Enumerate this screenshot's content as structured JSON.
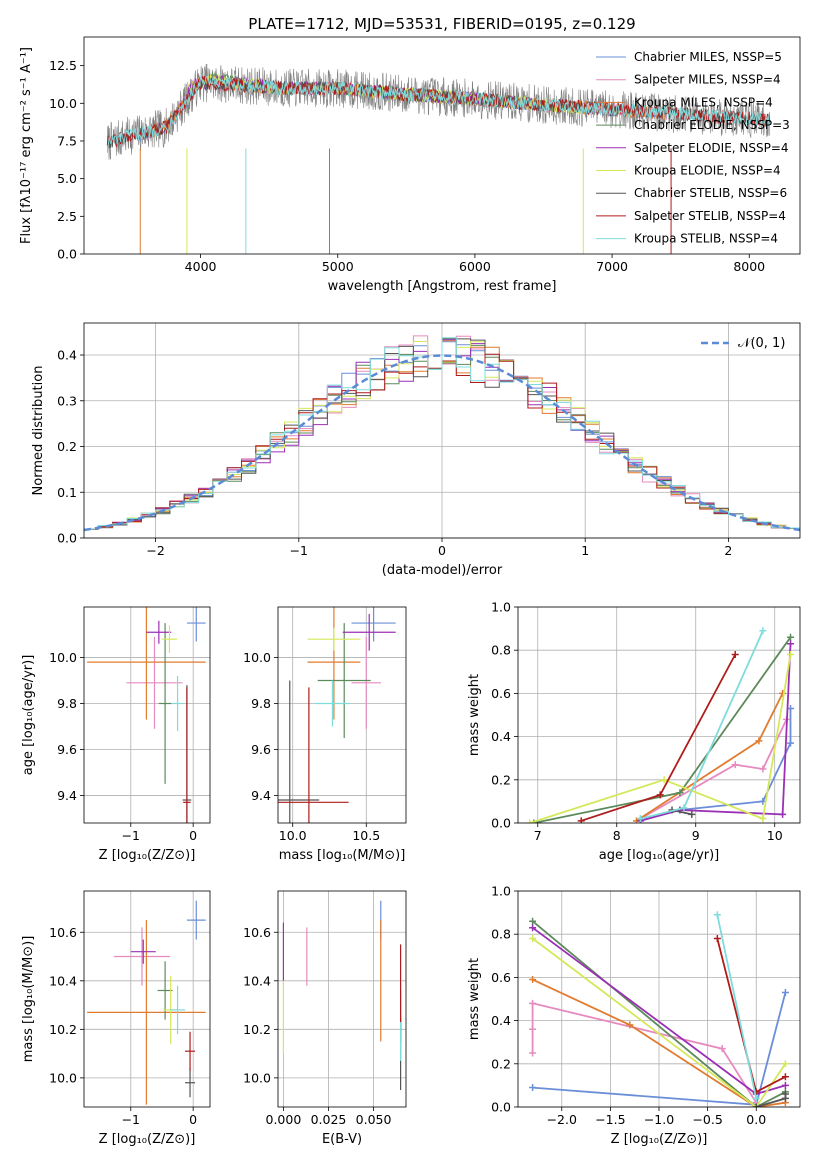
{
  "chart_data": [
    {
      "id": "spectrum",
      "type": "line",
      "title": "PLATE=1712, MJD=53531, FIBERID=0195, z=0.129",
      "xlabel": "wavelength [Angstrom, rest frame]",
      "ylabel": "Flux [fλ10⁻¹⁷ erg cm⁻² s⁻¹ A⁻¹]",
      "xlim": [
        3150,
        8370
      ],
      "ylim": [
        0,
        14.4
      ],
      "xticks": [
        4000,
        5000,
        6000,
        7000,
        8000
      ],
      "yticks": [
        0.0,
        2.5,
        5.0,
        7.5,
        10.0,
        12.5
      ],
      "grid": false,
      "legend_position": "right",
      "series": [
        {
          "name": "Chabrier MILES, N_SSP=5",
          "color": "#6a8fd8",
          "wave": [
            3540,
            3750,
            4000,
            4300,
            4600,
            5000,
            5500,
            6000,
            6500,
            7000,
            7400
          ],
          "flux": [
            7.8,
            8.5,
            11.4,
            11.2,
            11.0,
            11.0,
            10.6,
            10.3,
            9.9,
            9.6,
            9.3
          ]
        },
        {
          "name": "Salpeter MILES, N_SSP=4",
          "color": "#e68bbf",
          "wave": [
            3540,
            3750,
            4000,
            4300,
            4600,
            5000,
            5500,
            6000,
            6500,
            7000,
            7400
          ],
          "flux": [
            7.8,
            8.5,
            11.4,
            11.2,
            11.0,
            11.0,
            10.6,
            10.3,
            9.9,
            9.6,
            9.3
          ]
        },
        {
          "name": "Kroupa MILES, N_SSP=4",
          "color": "#e07b2f",
          "wave": [
            3540,
            3750,
            4000,
            4300,
            4600,
            5000,
            5500,
            6000,
            6500,
            7000,
            7400
          ],
          "flux": [
            7.8,
            8.5,
            11.4,
            11.2,
            11.0,
            11.0,
            10.6,
            10.3,
            9.9,
            9.6,
            9.3
          ]
        },
        {
          "name": "Chabrier ELODIE, N_SSP=3",
          "color": "#5d8a5b",
          "wave": [
            3900,
            4100,
            4300,
            4600,
            5000,
            5500,
            6000,
            6500
          ],
          "flux": [
            11.0,
            11.6,
            11.3,
            11.0,
            11.0,
            10.6,
            10.3,
            9.9
          ]
        },
        {
          "name": "Salpeter ELODIE, N_SSP=4",
          "color": "#9b30b5",
          "wave": [
            3900,
            4100,
            4300,
            4600,
            5000,
            5500,
            6000,
            6500
          ],
          "flux": [
            11.0,
            11.6,
            11.3,
            11.0,
            11.0,
            10.6,
            10.3,
            9.9
          ]
        },
        {
          "name": "Kroupa ELODIE, N_SSP=4",
          "color": "#d5e85a",
          "wave": [
            3900,
            4100,
            4300,
            4600,
            5000,
            5500,
            6000,
            6500,
            6800
          ],
          "flux": [
            11.0,
            11.6,
            11.3,
            11.0,
            11.0,
            10.6,
            10.3,
            9.9,
            9.6
          ]
        },
        {
          "name": "Chabrier STELIB, N_SSP=6",
          "color": "#555555",
          "wave": [
            3320,
            3500,
            3750,
            4000,
            4300,
            4600,
            5000,
            5500,
            6000,
            6500,
            7000,
            7500,
            8000,
            8150
          ],
          "flux": [
            7.4,
            7.9,
            8.4,
            11.4,
            11.2,
            11.0,
            11.0,
            10.6,
            10.3,
            9.9,
            9.6,
            9.3,
            9.0,
            8.9
          ]
        },
        {
          "name": "Salpeter STELIB, N_SSP=4",
          "color": "#b01c1c",
          "wave": [
            3320,
            3500,
            3750,
            4000,
            4300,
            4600,
            5000,
            5500,
            6000,
            6500,
            7000,
            7500,
            8000,
            8150
          ],
          "flux": [
            7.4,
            7.9,
            8.4,
            11.4,
            11.2,
            11.0,
            11.0,
            10.6,
            10.3,
            9.9,
            9.6,
            9.3,
            9.0,
            8.9
          ]
        },
        {
          "name": "Kroupa STELIB, N_SSP=4",
          "color": "#7fdcdc",
          "wave": [
            3320,
            3500,
            3750,
            4000,
            4300,
            4600,
            5000,
            5500,
            6000,
            6500,
            7000,
            7500,
            8000,
            8150
          ],
          "flux": [
            7.4,
            7.9,
            8.4,
            11.4,
            11.2,
            11.0,
            11.0,
            10.6,
            10.3,
            9.9,
            9.6,
            9.3,
            9.0,
            8.9
          ]
        }
      ],
      "observed": {
        "color": "#808080",
        "wave": [
          3320,
          3500,
          3750,
          4000,
          4300,
          4600,
          5000,
          5500,
          6000,
          6500,
          7000,
          7500,
          8000,
          8150
        ],
        "flux": [
          7.4,
          7.9,
          8.4,
          11.4,
          11.2,
          11.0,
          11.0,
          10.6,
          10.3,
          9.9,
          9.6,
          9.3,
          9.0,
          8.9
        ]
      }
    },
    {
      "id": "residuals",
      "type": "line",
      "xlabel": "(data-model)/error",
      "ylabel": "Normed distribution",
      "xlim": [
        -2.5,
        2.5
      ],
      "ylim": [
        0,
        0.47
      ],
      "xticks": [
        -2,
        -1,
        0,
        1,
        2
      ],
      "xtick_labels": [
        "−2",
        "−1",
        "0",
        "1",
        "2"
      ],
      "yticks": [
        0.0,
        0.1,
        0.2,
        0.3,
        0.4
      ],
      "grid": true,
      "legend_position": "top-right",
      "legend": "𝒩(0, 1)",
      "gauss_color": "#5b8bd6",
      "bin_width": 0.1
    },
    {
      "id": "age-vs-z",
      "type": "scatter",
      "xlabel": "Z [log₁₀(Z/Z⊙)]",
      "ylabel": "age  [log₁₀(age/yr)]",
      "xlim": [
        -1.75,
        0.27
      ],
      "ylim": [
        9.28,
        10.22
      ],
      "xticks": [
        -1,
        0
      ],
      "xtick_labels": [
        "−1",
        "0"
      ],
      "yticks": [
        9.4,
        9.6,
        9.8,
        10.0
      ],
      "grid": true,
      "points": [
        {
          "color": "#6a8fd8",
          "x": 0.05,
          "y": 10.15,
          "xerr": 0.15,
          "yerr": 0.08
        },
        {
          "color": "#e68bbf",
          "x": -0.62,
          "y": 9.89,
          "xerr": 0.45,
          "yerr": 0.2
        },
        {
          "color": "#e07b2f",
          "x": -0.75,
          "y": 9.98,
          "xerr": 0.95,
          "yerr": 0.25
        },
        {
          "color": "#5d8a5b",
          "x": -0.45,
          "y": 9.8,
          "xerr": 0.1,
          "yerr": 0.35
        },
        {
          "color": "#9b30b5",
          "x": -0.55,
          "y": 10.11,
          "xerr": 0.2,
          "yerr": 0.05
        },
        {
          "color": "#d5e85a",
          "x": -0.38,
          "y": 10.08,
          "xerr": 0.12,
          "yerr": 0.06
        },
        {
          "color": "#555555",
          "x": -0.1,
          "y": 9.38,
          "xerr": 0.07,
          "yerr": 0.5
        },
        {
          "color": "#b01c1c",
          "x": -0.1,
          "y": 9.37,
          "xerr": 0.06,
          "yerr": 0.5
        },
        {
          "color": "#7fdcdc",
          "x": -0.25,
          "y": 9.8,
          "xerr": 0.1,
          "yerr": 0.12
        }
      ]
    },
    {
      "id": "age-vs-mass",
      "type": "scatter",
      "xlabel": "mass [log₁₀(M/M⊙)]",
      "xlim": [
        9.9,
        10.77
      ],
      "ylim": [
        9.28,
        10.22
      ],
      "xticks": [
        10.0,
        10.5
      ],
      "yticks": [
        9.4,
        9.6,
        9.8,
        10.0
      ],
      "grid": true,
      "points": [
        {
          "color": "#6a8fd8",
          "x": 10.55,
          "y": 10.15,
          "xerr": 0.15,
          "yerr": 0.08
        },
        {
          "color": "#e68bbf",
          "x": 10.5,
          "y": 9.89,
          "xerr": 0.1,
          "yerr": 0.2
        },
        {
          "color": "#e07b2f",
          "x": 10.28,
          "y": 9.98,
          "xerr": 0.18,
          "yerr": 0.25
        },
        {
          "color": "#5d8a5b",
          "x": 10.35,
          "y": 9.9,
          "xerr": 0.18,
          "yerr": 0.25
        },
        {
          "color": "#9b30b5",
          "x": 10.52,
          "y": 10.11,
          "xerr": 0.18,
          "yerr": 0.08
        },
        {
          "color": "#d5e85a",
          "x": 10.28,
          "y": 10.08,
          "xerr": 0.18,
          "yerr": 0.05
        },
        {
          "color": "#555555",
          "x": 9.98,
          "y": 9.38,
          "xerr": 0.2,
          "yerr": 0.52
        },
        {
          "color": "#b01c1c",
          "x": 10.11,
          "y": 9.37,
          "xerr": 0.27,
          "yerr": 0.5
        },
        {
          "color": "#7fdcdc",
          "x": 10.27,
          "y": 9.8,
          "xerr": 0.12,
          "yerr": 0.1
        }
      ]
    },
    {
      "id": "mass-weight-vs-age",
      "type": "line",
      "xlabel": "age  [log₁₀(age/yr)]",
      "ylabel": "mass weight",
      "xlim": [
        6.75,
        10.32
      ],
      "ylim": [
        0,
        1.0
      ],
      "xticks": [
        7,
        8,
        9,
        10
      ],
      "yticks": [
        0.0,
        0.2,
        0.4,
        0.6,
        0.8,
        1.0
      ],
      "grid": true,
      "series": [
        {
          "name": "Chabrier MILES",
          "color": "#6a8fd8",
          "x": [
            8.3,
            8.8,
            9.85,
            10.2,
            10.2
          ],
          "y": [
            0.01,
            0.06,
            0.1,
            0.37,
            0.53
          ]
        },
        {
          "name": "Salpeter MILES",
          "color": "#e68bbf",
          "x": [
            8.3,
            9.5,
            9.85,
            10.15
          ],
          "y": [
            0.02,
            0.27,
            0.25,
            0.48
          ]
        },
        {
          "name": "Kroupa MILES",
          "color": "#e07b2f",
          "x": [
            8.25,
            9.8,
            10.1
          ],
          "y": [
            0.01,
            0.38,
            0.6
          ]
        },
        {
          "name": "Chabrier ELODIE",
          "color": "#5d8a5b",
          "x": [
            6.95,
            8.8,
            10.2
          ],
          "y": [
            0.0,
            0.14,
            0.86
          ]
        },
        {
          "name": "Salpeter ELODIE",
          "color": "#9b30b5",
          "x": [
            8.3,
            8.8,
            10.1,
            10.2
          ],
          "y": [
            0.01,
            0.06,
            0.04,
            0.83
          ]
        },
        {
          "name": "Kroupa ELODIE",
          "color": "#d5e85a",
          "x": [
            6.9,
            8.6,
            9.85,
            10.2
          ],
          "y": [
            0.0,
            0.2,
            0.02,
            0.78
          ]
        },
        {
          "name": "Chabrier STELIB",
          "color": "#555555",
          "x": [
            8.7,
            8.95
          ],
          "y": [
            0.06,
            0.04
          ]
        },
        {
          "name": "Salpeter STELIB",
          "color": "#b01c1c",
          "x": [
            7.55,
            8.55,
            9.5
          ],
          "y": [
            0.01,
            0.13,
            0.78
          ]
        },
        {
          "name": "Kroupa STELIB",
          "color": "#7fdcdc",
          "x": [
            8.3,
            8.85,
            9.85
          ],
          "y": [
            0.02,
            0.07,
            0.89
          ]
        }
      ]
    },
    {
      "id": "mass-vs-z",
      "type": "scatter",
      "xlabel": "Z [log₁₀(Z/Z⊙)]",
      "ylabel": "mass [log₁₀(M/M⊙)]",
      "xlim": [
        -1.75,
        0.27
      ],
      "ylim": [
        9.88,
        10.77
      ],
      "xticks": [
        -1,
        0
      ],
      "xtick_labels": [
        "−1",
        "0"
      ],
      "yticks": [
        10.0,
        10.2,
        10.4,
        10.6
      ],
      "grid": true,
      "points": [
        {
          "color": "#6a8fd8",
          "x": 0.05,
          "y": 10.65,
          "xerr": 0.15,
          "yerr": 0.08
        },
        {
          "color": "#e68bbf",
          "x": -0.82,
          "y": 10.5,
          "xerr": 0.45,
          "yerr": 0.12
        },
        {
          "color": "#e07b2f",
          "x": -0.75,
          "y": 10.27,
          "xerr": 0.95,
          "yerr": 0.38
        },
        {
          "color": "#5d8a5b",
          "x": -0.45,
          "y": 10.36,
          "xerr": 0.12,
          "yerr": 0.12
        },
        {
          "color": "#9b30b5",
          "x": -0.8,
          "y": 10.52,
          "xerr": 0.2,
          "yerr": 0.05
        },
        {
          "color": "#d5e85a",
          "x": -0.36,
          "y": 10.28,
          "xerr": 0.12,
          "yerr": 0.14
        },
        {
          "color": "#555555",
          "x": -0.05,
          "y": 9.98,
          "xerr": 0.08,
          "yerr": 0.06
        },
        {
          "color": "#b01c1c",
          "x": -0.05,
          "y": 10.11,
          "xerr": 0.08,
          "yerr": 0.08
        },
        {
          "color": "#7fdcdc",
          "x": -0.25,
          "y": 10.28,
          "xerr": 0.12,
          "yerr": 0.1
        }
      ]
    },
    {
      "id": "mass-vs-ebv",
      "type": "scatter",
      "xlabel": "E(B-V)",
      "xlim": [
        -0.003,
        0.068
      ],
      "ylim": [
        9.88,
        10.77
      ],
      "xticks": [
        0.0,
        0.025,
        0.05
      ],
      "xtick_labels": [
        "0.000",
        "0.025",
        "0.050"
      ],
      "yticks": [
        10.0,
        10.2,
        10.4,
        10.6
      ],
      "grid": true,
      "points": [
        {
          "color": "#6a8fd8",
          "x": 0.054,
          "y": 10.65,
          "xerr": 0.0,
          "yerr": 0.08
        },
        {
          "color": "#e68bbf",
          "x": 0.013,
          "y": 10.5,
          "xerr": 0.0,
          "yerr": 0.12
        },
        {
          "color": "#e07b2f",
          "x": 0.054,
          "y": 10.4,
          "xerr": 0.0,
          "yerr": 0.25
        },
        {
          "color": "#5d8a5b",
          "x": 0.065,
          "y": 10.28,
          "xerr": 0.0,
          "yerr": 0.08
        },
        {
          "color": "#9b30b5",
          "x": 0.0,
          "y": 10.52,
          "xerr": 0.0,
          "yerr": 0.12
        },
        {
          "color": "#d5e85a",
          "x": 0.0,
          "y": 10.25,
          "xerr": 0.0,
          "yerr": 0.15
        },
        {
          "color": "#555555",
          "x": 0.065,
          "y": 10.1,
          "xerr": 0.0,
          "yerr": 0.15
        },
        {
          "color": "#b01c1c",
          "x": 0.065,
          "y": 10.35,
          "xerr": 0.0,
          "yerr": 0.2
        },
        {
          "color": "#7fdcdc",
          "x": 0.065,
          "y": 10.15,
          "xerr": 0.0,
          "yerr": 0.08
        }
      ]
    },
    {
      "id": "mass-weight-vs-z",
      "type": "line",
      "xlabel": "Z [log₁₀(Z/Z⊙)]",
      "ylabel": "mass weight",
      "xlim": [
        -2.45,
        0.45
      ],
      "ylim": [
        0,
        1.0
      ],
      "xticks": [
        -2.0,
        -1.5,
        -1.0,
        -0.5,
        0.0
      ],
      "xtick_labels": [
        "−2.0",
        "−1.5",
        "−1.0",
        "−0.5",
        "0.0"
      ],
      "yticks": [
        0.0,
        0.2,
        0.4,
        0.6,
        0.8,
        1.0
      ],
      "grid": true,
      "series": [
        {
          "name": "Chabrier MILES",
          "color": "#6a8fd8",
          "x": [
            -2.3,
            0.0,
            0.3
          ],
          "y": [
            0.09,
            0.01,
            0.53
          ]
        },
        {
          "name": "Salpeter MILES",
          "color": "#e68bbf",
          "x": [
            -2.3,
            -2.3,
            -2.3,
            -0.35,
            0.0
          ],
          "y": [
            0.25,
            0.36,
            0.48,
            0.27,
            0.02
          ]
        },
        {
          "name": "Kroupa MILES",
          "color": "#e07b2f",
          "x": [
            -2.3,
            -1.3,
            0.0,
            0.3
          ],
          "y": [
            0.59,
            0.38,
            0.0,
            0.02
          ]
        },
        {
          "name": "Chabrier ELODIE",
          "color": "#5d8a5b",
          "x": [
            -2.3,
            0.0,
            0.3
          ],
          "y": [
            0.86,
            0.0,
            0.07
          ]
        },
        {
          "name": "Salpeter ELODIE",
          "color": "#9b30b5",
          "x": [
            -2.3,
            0.0,
            0.3
          ],
          "y": [
            0.83,
            0.06,
            0.1
          ]
        },
        {
          "name": "Kroupa ELODIE",
          "color": "#d5e85a",
          "x": [
            -2.3,
            0.0,
            0.3
          ],
          "y": [
            0.78,
            0.0,
            0.2
          ]
        },
        {
          "name": "Chabrier STELIB",
          "color": "#555555",
          "x": [
            0.0,
            0.3,
            0.3
          ],
          "y": [
            0.0,
            0.04,
            0.06
          ]
        },
        {
          "name": "Salpeter STELIB",
          "color": "#b01c1c",
          "x": [
            -0.4,
            0.0,
            0.3
          ],
          "y": [
            0.78,
            0.07,
            0.14
          ]
        },
        {
          "name": "Kroupa STELIB",
          "color": "#7fdcdc",
          "x": [
            -0.4,
            0.0
          ],
          "y": [
            0.89,
            0.04
          ]
        }
      ]
    }
  ]
}
